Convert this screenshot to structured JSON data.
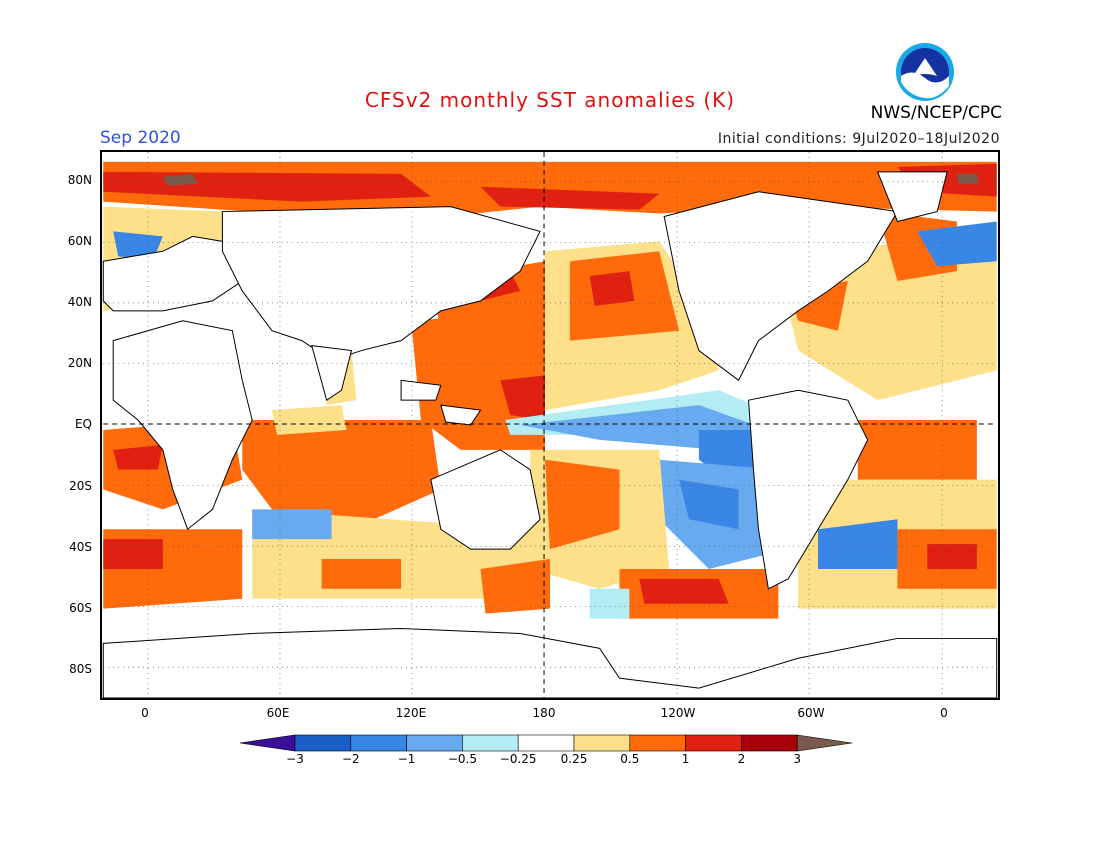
{
  "title": "CFSv2 monthly SST anomalies (K)",
  "valid_month": "Sep 2020",
  "initial_conditions": "Initial conditions: 9Jul2020–18Jul2020",
  "agency": "NWS/NCEP/CPC",
  "logo_icon": "noaa-logo-icon",
  "lat_labels": [
    "80N",
    "60N",
    "40N",
    "20N",
    "EQ",
    "20S",
    "40S",
    "60S",
    "80S"
  ],
  "lon_labels": [
    "0",
    "60E",
    "120E",
    "180",
    "120W",
    "60W",
    "0"
  ],
  "colorbar": {
    "ticks": [
      "−3",
      "−2",
      "−1",
      "−0.5",
      "−0.25",
      "0.25",
      "0.5",
      "1",
      "2",
      "3"
    ],
    "colors": [
      "#3a0f9a",
      "#1a5fc8",
      "#3a86e6",
      "#68aaf0",
      "#b4ecf4",
      "#ffffff",
      "#fee08a",
      "#ff6a0a",
      "#e02010",
      "#a8000a",
      "#7a5a4a"
    ]
  }
}
